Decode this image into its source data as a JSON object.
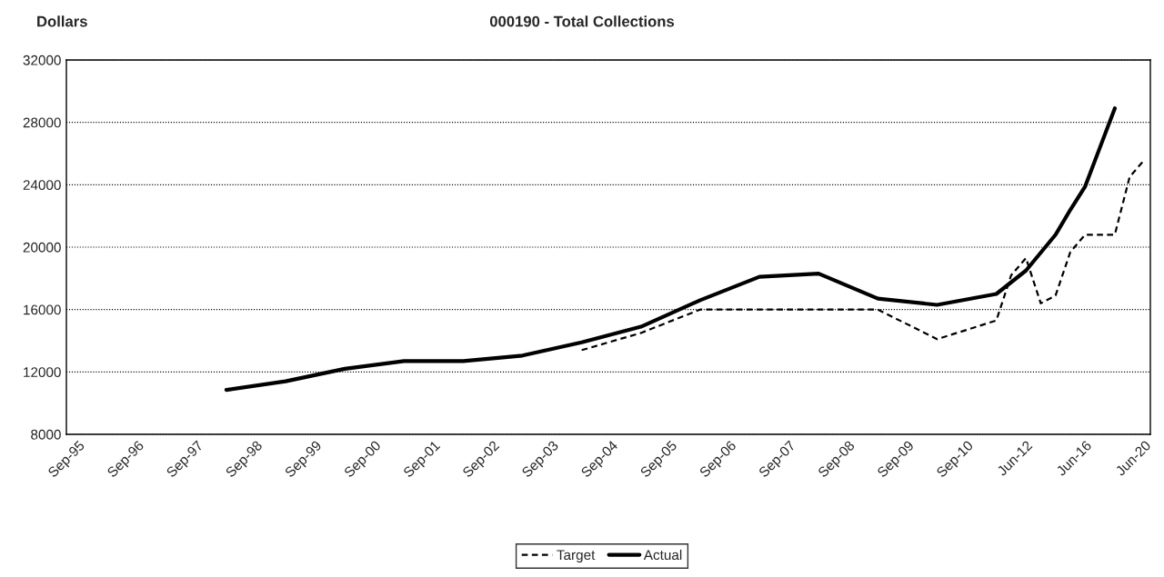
{
  "chart_data": {
    "type": "line",
    "title": "000190 - Total Collections",
    "ylabel": "Dollars",
    "ylim": [
      8000,
      32000
    ],
    "yticks": [
      8000,
      12000,
      16000,
      20000,
      24000,
      28000,
      32000
    ],
    "categories": [
      "Sep-95",
      null,
      null,
      null,
      "Sep-96",
      null,
      null,
      null,
      "Sep-97",
      null,
      null,
      null,
      "Sep-98",
      null,
      null,
      null,
      "Sep-99",
      null,
      null,
      null,
      "Sep-00",
      null,
      null,
      null,
      "Sep-01",
      null,
      null,
      null,
      "Sep-02",
      null,
      null,
      null,
      "Sep-03",
      null,
      null,
      null,
      "Sep-04",
      null,
      null,
      null,
      "Sep-05",
      null,
      null,
      null,
      "Sep-06",
      null,
      null,
      null,
      "Sep-07",
      null,
      null,
      null,
      "Sep-08",
      null,
      null,
      null,
      "Sep-09",
      null,
      null,
      null,
      "Sep-10",
      null,
      null,
      null,
      "Jun-12",
      null,
      null,
      null,
      "Jun-16",
      null,
      null,
      null,
      "Jun-20"
    ],
    "grid": "y",
    "legend": "bottom",
    "series": [
      {
        "name": "Target",
        "color": "#000000",
        "line_style": "dashed",
        "values": [
          null,
          null,
          null,
          null,
          null,
          null,
          null,
          null,
          null,
          null,
          null,
          null,
          null,
          null,
          null,
          null,
          null,
          null,
          null,
          null,
          null,
          null,
          null,
          null,
          null,
          null,
          null,
          null,
          null,
          null,
          null,
          null,
          null,
          null,
          13400,
          null,
          null,
          null,
          14500,
          null,
          null,
          null,
          16000,
          null,
          null,
          null,
          16000,
          null,
          null,
          null,
          16000,
          null,
          null,
          null,
          16000,
          null,
          null,
          null,
          14100,
          null,
          null,
          null,
          15300,
          18200,
          19300,
          16400,
          16900,
          19700,
          20800,
          null,
          20800,
          24500,
          25600
        ]
      },
      {
        "name": "Actual",
        "color": "#000000",
        "line_style": "solid",
        "values": [
          null,
          null,
          null,
          null,
          null,
          null,
          null,
          null,
          null,
          null,
          10850,
          null,
          null,
          null,
          11400,
          null,
          null,
          null,
          12200,
          null,
          null,
          null,
          12700,
          null,
          null,
          null,
          12700,
          null,
          null,
          null,
          13050,
          null,
          null,
          null,
          13900,
          null,
          null,
          null,
          14900,
          null,
          null,
          null,
          16600,
          null,
          null,
          null,
          18100,
          null,
          null,
          null,
          18300,
          null,
          null,
          null,
          16700,
          null,
          null,
          null,
          16300,
          null,
          null,
          null,
          17000,
          null,
          18500,
          null,
          20800,
          22400,
          23900,
          26400,
          28900,
          null,
          null
        ]
      }
    ]
  }
}
